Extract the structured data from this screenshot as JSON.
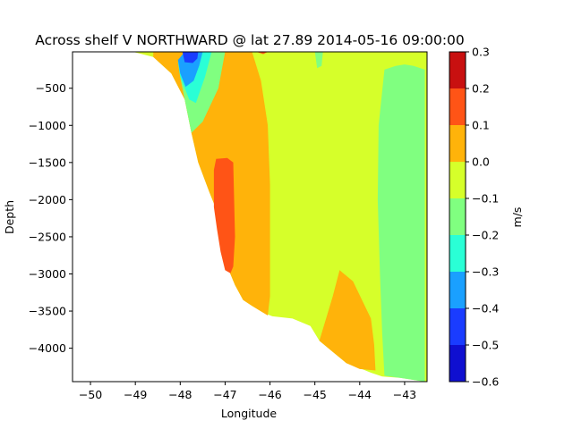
{
  "chart_data": {
    "type": "heatmap",
    "subtype": "filled-contour",
    "title": "Across shelf V NORTHWARD @ lat 27.89 2014-05-16 09:00:00",
    "xlabel": "Longitude",
    "ylabel": "Depth",
    "xlim": [
      -50.4,
      -42.5
    ],
    "ylim": [
      -4450,
      -10
    ],
    "xticks": [
      -50,
      -49,
      -48,
      -47,
      -46,
      -45,
      -44,
      -43
    ],
    "yticks": [
      -4000,
      -3500,
      -3000,
      -2500,
      -2000,
      -1500,
      -1000,
      -500
    ],
    "colorbar": {
      "label": "m/s",
      "levels": [
        -0.6,
        -0.5,
        -0.4,
        -0.3,
        -0.2,
        -0.1,
        0.0,
        0.1,
        0.2,
        0.3
      ],
      "colors": [
        "#0f0fd0",
        "#1a3cff",
        "#1aa0ff",
        "#2affd6",
        "#80ff80",
        "#d6ff2a",
        "#ffb30a",
        "#ff5416",
        "#c81010"
      ]
    },
    "bathymetry": [
      [
        -49.05,
        -10
      ],
      [
        -48.6,
        -80
      ],
      [
        -48.2,
        -300
      ],
      [
        -47.9,
        -650
      ],
      [
        -47.75,
        -1100
      ],
      [
        -47.6,
        -1500
      ],
      [
        -47.35,
        -1900
      ],
      [
        -47.15,
        -2200
      ],
      [
        -47.0,
        -2550
      ],
      [
        -46.95,
        -2900
      ],
      [
        -46.78,
        -3150
      ],
      [
        -46.6,
        -3350
      ],
      [
        -46.4,
        -3430
      ],
      [
        -46.15,
        -3520
      ],
      [
        -45.95,
        -3570
      ],
      [
        -45.5,
        -3600
      ],
      [
        -45.1,
        -3700
      ],
      [
        -44.9,
        -3900
      ],
      [
        -44.6,
        -4050
      ],
      [
        -44.3,
        -4200
      ],
      [
        -43.95,
        -4280
      ],
      [
        -43.75,
        -4330
      ],
      [
        -43.5,
        -4380
      ],
      [
        -43.1,
        -4400
      ],
      [
        -42.55,
        -4450
      ]
    ],
    "regions": [
      {
        "value_bin": [
          -0.1,
          0.0
        ],
        "role": "background"
      },
      {
        "value_bin": [
          0.0,
          0.1
        ],
        "location": "upper slope to -46.0 and deep eddy near -44.4"
      },
      {
        "value_bin": [
          0.1,
          0.2
        ],
        "location": "core near -47.2 from -1450 to -2950, small core near -46.2 at surface"
      },
      {
        "value_bin": [
          -0.2,
          -0.1
        ],
        "location": "offshore band east of -43.6 and shelf-break edge"
      },
      {
        "value_bin": [
          -0.3,
          -0.2
        ],
        "location": "shelf break near -47.8"
      },
      {
        "value_bin": [
          -0.4,
          -0.3
        ],
        "location": "shelf break near -47.8"
      },
      {
        "value_bin": [
          -0.5,
          -0.4
        ],
        "location": "shelf break near -47.8, upper 250 m"
      }
    ]
  }
}
